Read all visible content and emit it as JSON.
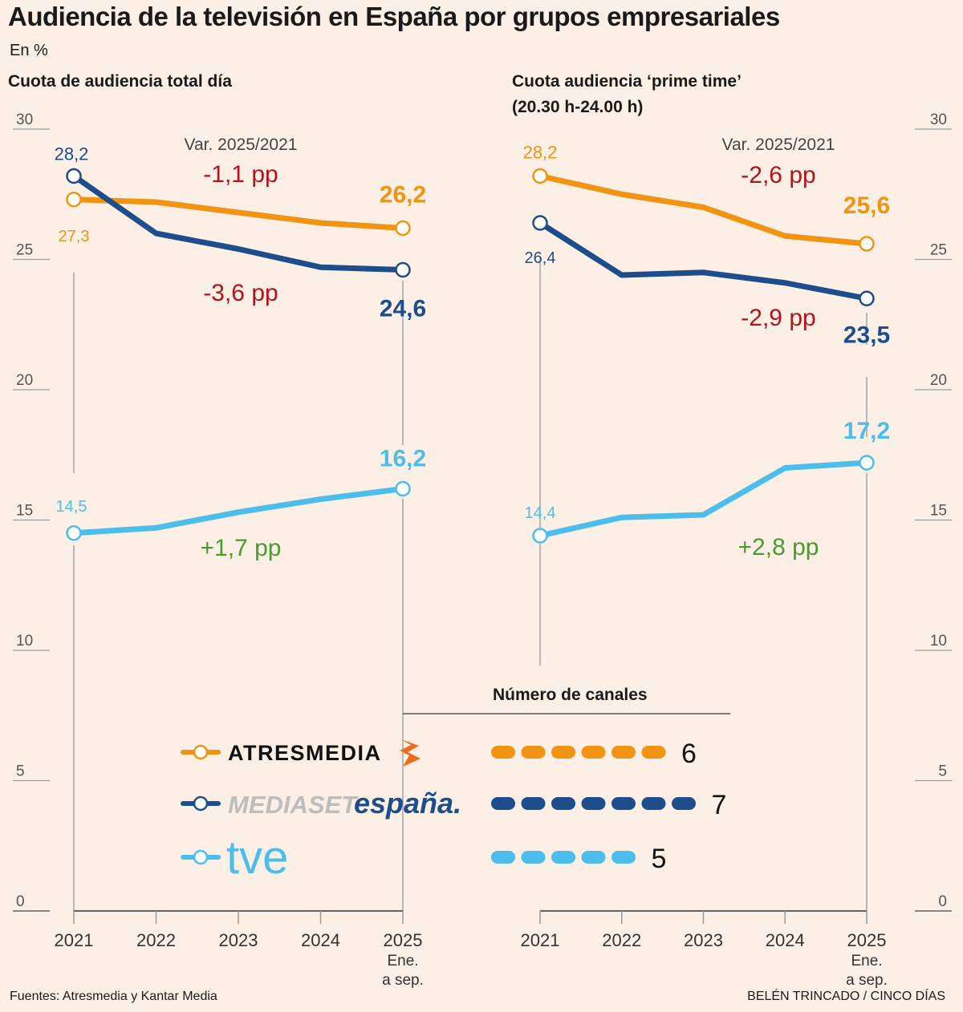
{
  "title": "Audiencia de la televisión en España por grupos empresariales",
  "unit": "En %",
  "source": "Fuentes: Atresmedia y Kantar Media",
  "credit": "BELÉN TRINCADO / CINCO DÍAS",
  "colors": {
    "atresmedia": "#F29312",
    "mediaset": "#1E4D8C",
    "tve": "#4DBDEB",
    "negative": "#B5121B",
    "positive": "#4A9A30",
    "background": "#FCF0E6"
  },
  "legend": {
    "title": "Número de canales",
    "items": [
      {
        "key": "atresmedia",
        "label": "ATRESMEDIA",
        "channels": 6
      },
      {
        "key": "mediaset",
        "label_a": "MEDIASET",
        "label_b": "españa.",
        "channels": 7
      },
      {
        "key": "tve",
        "label": "tve",
        "channels": 5
      }
    ]
  },
  "chart_data": [
    {
      "type": "line",
      "title": "Cuota de audiencia total día",
      "xlabel": "",
      "ylabel": "En %",
      "x": [
        "2021",
        "2022",
        "2023",
        "2024",
        "2025"
      ],
      "x_sublabel_last": [
        "Ene.",
        "a sep."
      ],
      "ylim": [
        0,
        30
      ],
      "yticks": [
        0,
        5,
        10,
        15,
        20,
        25,
        30
      ],
      "y_axis_side": "left",
      "variation_label": "Var. 2025/2021",
      "series": [
        {
          "name": "Atresmedia",
          "key": "atresmedia",
          "values": [
            27.3,
            27.2,
            26.8,
            26.4,
            26.2
          ],
          "start_label": "27,3",
          "end_label": "26,2",
          "variation": "-1,1 pp"
        },
        {
          "name": "Mediaset España",
          "key": "mediaset",
          "values": [
            28.2,
            26.0,
            25.4,
            24.7,
            24.6
          ],
          "start_label": "28,2",
          "end_label": "24,6",
          "variation": "-3,6 pp"
        },
        {
          "name": "TVE",
          "key": "tve",
          "values": [
            14.5,
            14.7,
            15.3,
            15.8,
            16.2
          ],
          "start_label": "14,5",
          "end_label": "16,2",
          "variation": "+1,7 pp"
        }
      ]
    },
    {
      "type": "line",
      "title": "Cuota audiencia ‘prime time’ (20.30 h-24.00 h)",
      "title_line1": "Cuota audiencia ‘prime time’",
      "title_line2": "(20.30 h-24.00 h)",
      "xlabel": "",
      "ylabel": "En %",
      "x": [
        "2021",
        "2022",
        "2023",
        "2024",
        "2025"
      ],
      "x_sublabel_last": [
        "Ene.",
        "a sep."
      ],
      "ylim": [
        0,
        30
      ],
      "yticks": [
        0,
        5,
        10,
        15,
        20,
        25,
        30
      ],
      "y_axis_side": "right",
      "variation_label": "Var. 2025/2021",
      "series": [
        {
          "name": "Atresmedia",
          "key": "atresmedia",
          "values": [
            28.2,
            27.5,
            27.0,
            25.9,
            25.6
          ],
          "start_label": "28,2",
          "end_label": "25,6",
          "variation": "-2,6 pp"
        },
        {
          "name": "Mediaset España",
          "key": "mediaset",
          "values": [
            26.4,
            24.4,
            24.5,
            24.1,
            23.5
          ],
          "start_label": "26,4",
          "end_label": "23,5",
          "variation": "-2,9 pp"
        },
        {
          "name": "TVE",
          "key": "tve",
          "values": [
            14.4,
            15.1,
            15.2,
            17.0,
            17.2
          ],
          "start_label": "14,4",
          "end_label": "17,2",
          "variation": "+2,8 pp"
        }
      ]
    }
  ]
}
